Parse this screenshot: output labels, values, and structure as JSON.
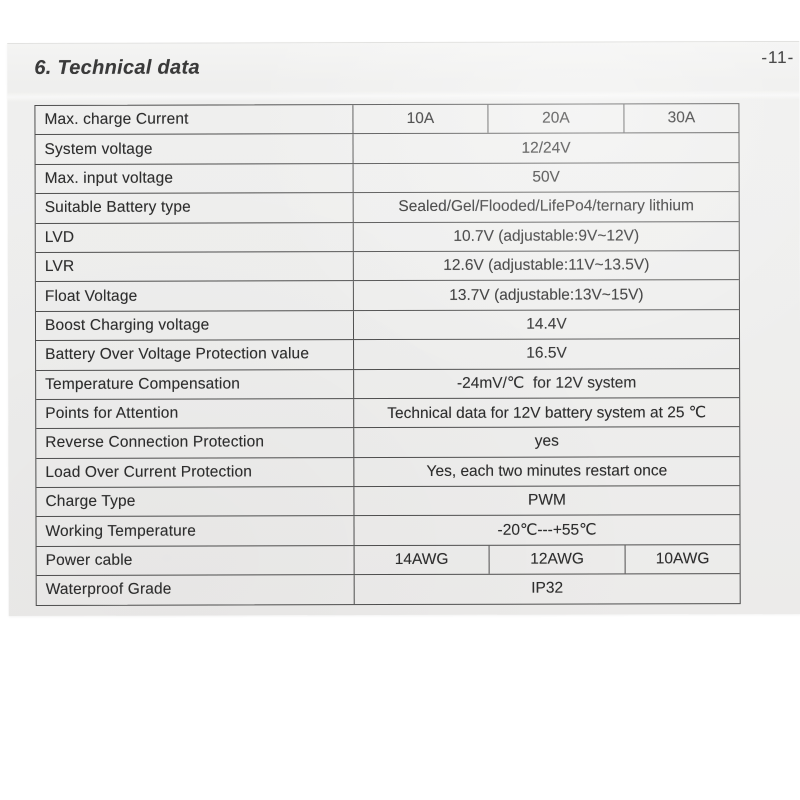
{
  "page": {
    "title": "6. Technical data",
    "page_number": "-11-"
  },
  "colors": {
    "paper": "#eeeeed",
    "table_border": "#4f4f4f",
    "text": "#2e2e2e",
    "background": "#ffffff"
  },
  "table": {
    "rows": [
      {
        "label": "Max. charge Current",
        "values": [
          "10A",
          "20A",
          "30A"
        ]
      },
      {
        "label": "System voltage",
        "values": [
          "12/24V"
        ]
      },
      {
        "label": "Max. input voltage",
        "values": [
          "50V"
        ]
      },
      {
        "label": "Suitable Battery type",
        "values": [
          "Sealed/Gel/Flooded/LifePo4/ternary lithium"
        ]
      },
      {
        "label": "LVD",
        "values": [
          "10.7V (adjustable:9V~12V)"
        ]
      },
      {
        "label": "LVR",
        "values": [
          "12.6V (adjustable:11V~13.5V)"
        ]
      },
      {
        "label": "Float Voltage",
        "values": [
          "13.7V (adjustable:13V~15V)"
        ]
      },
      {
        "label": "Boost Charging voltage",
        "values": [
          "14.4V"
        ]
      },
      {
        "label": "Battery Over Voltage Protection value",
        "values": [
          "16.5V"
        ]
      },
      {
        "label": "Temperature Compensation",
        "values": [
          "-24mV/℃  for 12V system"
        ]
      },
      {
        "label": "Points for Attention",
        "values": [
          "Technical data for 12V battery system at 25 ℃"
        ]
      },
      {
        "label": "Reverse Connection Protection",
        "values": [
          "yes"
        ]
      },
      {
        "label": "Load Over Current Protection",
        "values": [
          "Yes, each two minutes restart once"
        ]
      },
      {
        "label": "Charge Type",
        "values": [
          "PWM"
        ]
      },
      {
        "label": "Working Temperature",
        "values": [
          "-20℃---+55℃"
        ]
      },
      {
        "label": "Power cable",
        "values": [
          "14AWG",
          "12AWG",
          "10AWG"
        ]
      },
      {
        "label": "Waterproof Grade",
        "values": [
          "IP32"
        ]
      }
    ]
  }
}
